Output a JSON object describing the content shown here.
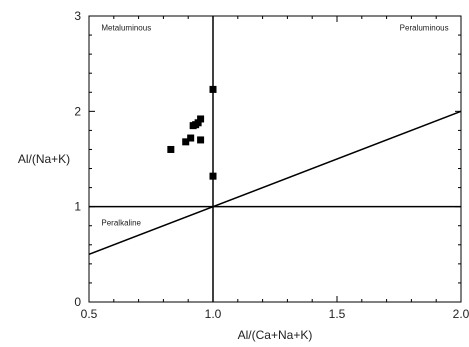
{
  "chart_data": {
    "type": "scatter",
    "title": "",
    "xlabel": "Al/(Ca+Na+K)",
    "ylabel": "Al/(Na+K)",
    "xlim": [
      0.5,
      2.0
    ],
    "ylim": [
      0,
      3
    ],
    "x_ticks": [
      "0.5",
      "1.0",
      "1.5",
      "2.0"
    ],
    "y_ticks": [
      "0",
      "1",
      "2",
      "3"
    ],
    "grid": false,
    "marker": "square",
    "marker_color": "#000000",
    "points": [
      {
        "x": 0.83,
        "y": 1.6
      },
      {
        "x": 0.89,
        "y": 1.68
      },
      {
        "x": 0.91,
        "y": 1.72
      },
      {
        "x": 0.92,
        "y": 1.85
      },
      {
        "x": 0.93,
        "y": 1.86
      },
      {
        "x": 0.94,
        "y": 1.88
      },
      {
        "x": 0.95,
        "y": 1.92
      },
      {
        "x": 0.95,
        "y": 1.7
      },
      {
        "x": 1.0,
        "y": 2.23
      },
      {
        "x": 1.0,
        "y": 1.32
      }
    ],
    "reference_lines": [
      {
        "type": "vertical",
        "x": 1.0
      },
      {
        "type": "horizontal",
        "y": 1.0
      },
      {
        "type": "line",
        "from": [
          0.5,
          0.5
        ],
        "to": [
          2.0,
          2.0
        ]
      }
    ],
    "region_labels": [
      {
        "key": "metaluminous",
        "text": "Metaluminous",
        "x": 0.55,
        "y": 2.85,
        "anchor": "start"
      },
      {
        "key": "peraluminous",
        "text": "Peraluminous",
        "x": 1.95,
        "y": 2.85,
        "anchor": "end"
      },
      {
        "key": "peralkaline",
        "text": "Peralkaline",
        "x": 0.55,
        "y": 0.8,
        "anchor": "start"
      }
    ]
  }
}
